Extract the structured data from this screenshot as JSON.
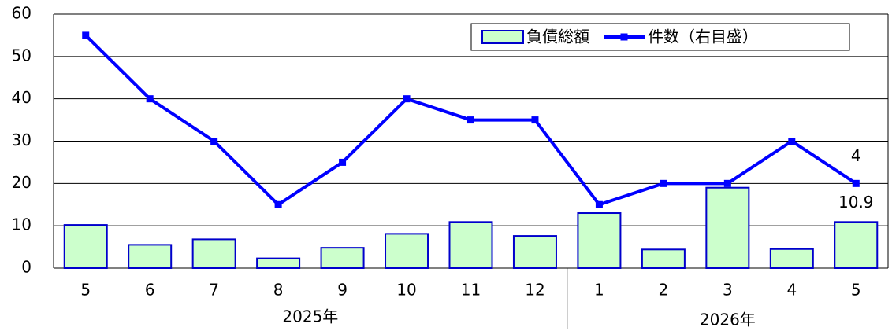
{
  "chart_data": {
    "type": "bar_line",
    "groups": [
      {
        "label": "2025年",
        "categories": [
          "5",
          "6",
          "7",
          "8",
          "9",
          "10",
          "11",
          "12"
        ]
      },
      {
        "label": "2026年",
        "categories": [
          "1",
          "2",
          "3",
          "4",
          "5"
        ]
      }
    ],
    "series": [
      {
        "name": "負債総額",
        "type": "bar",
        "color": "#ccffcc",
        "edge_color": "#0000cc",
        "values": [
          10.2,
          5.5,
          6.8,
          2.3,
          4.8,
          8.1,
          10.9,
          7.6,
          13.0,
          4.4,
          19.0,
          4.5,
          10.9
        ],
        "value_labels": [
          null,
          null,
          null,
          null,
          null,
          null,
          null,
          null,
          null,
          null,
          null,
          null,
          "10.9"
        ]
      },
      {
        "name": "件数（右目盛）",
        "type": "line",
        "axis": "y2",
        "color": "#0000ff",
        "values": [
          11,
          8,
          6,
          3,
          5,
          8,
          7,
          7,
          3,
          4,
          4,
          6,
          4
        ],
        "value_labels": [
          null,
          null,
          null,
          null,
          null,
          null,
          null,
          null,
          null,
          null,
          null,
          null,
          "4"
        ]
      }
    ],
    "ylim": [
      0,
      60
    ],
    "yticks": [
      0,
      10,
      20,
      30,
      40,
      50,
      60
    ],
    "y2lim": [
      0,
      12
    ],
    "grid": true,
    "legend": "top-right"
  }
}
